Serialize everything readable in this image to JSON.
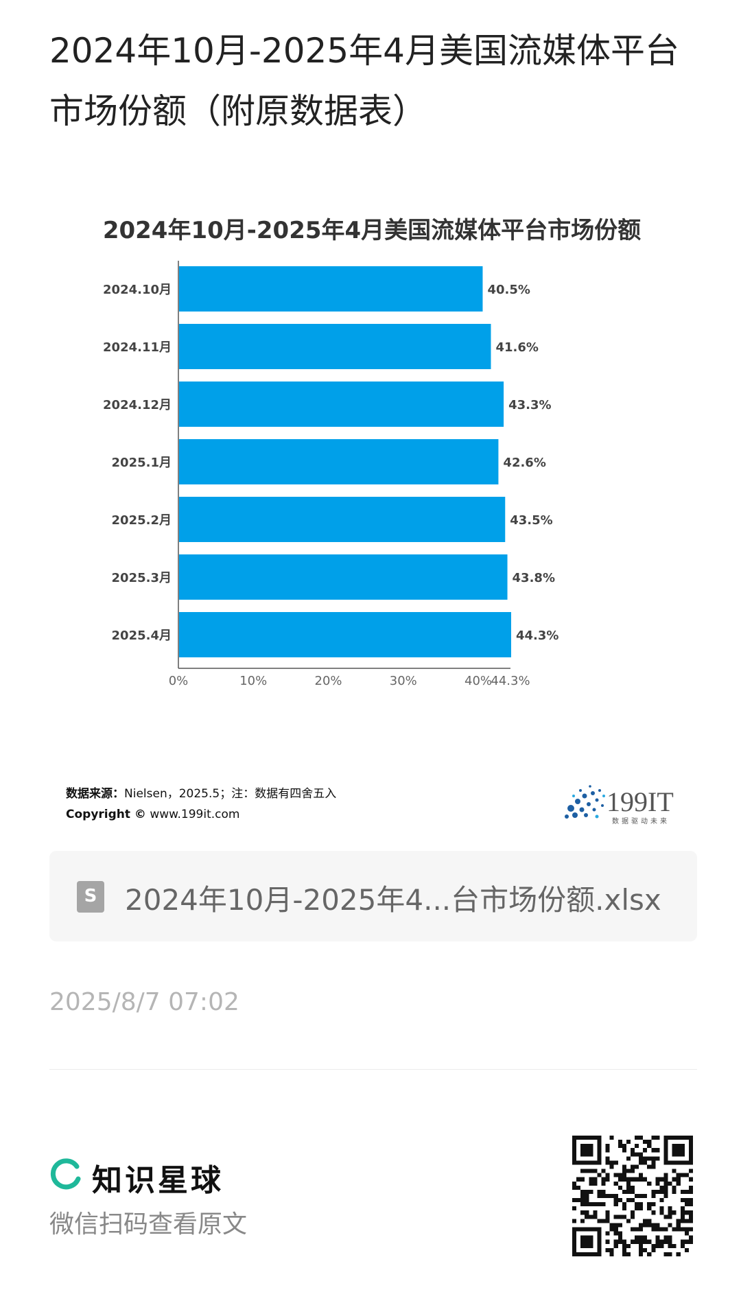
{
  "page": {
    "title": "2024年10月-2025年4月美国流媒体平台市场份额（附原数据表）"
  },
  "chart_data": {
    "type": "bar",
    "orientation": "horizontal",
    "title": "2024年10月-2025年4月美国流媒体平台市场份额",
    "categories": [
      "2024.10月",
      "2024.11月",
      "2024.12月",
      "2025.1月",
      "2025.2月",
      "2025.3月",
      "2025.4月"
    ],
    "values": [
      40.5,
      41.6,
      43.3,
      42.6,
      43.5,
      43.8,
      44.3
    ],
    "data_labels": [
      "40.5%",
      "41.6%",
      "43.3%",
      "42.6%",
      "43.5%",
      "43.8%",
      "44.3%"
    ],
    "x_ticks": [
      0,
      10,
      20,
      30,
      40,
      44.3
    ],
    "x_tick_labels": [
      "0%",
      "10%",
      "20%",
      "30%",
      "40%",
      "44.3%"
    ],
    "xlim": [
      0,
      44.3
    ],
    "bar_color": "#00a0e9",
    "grid": false,
    "xlabel": "",
    "ylabel": ""
  },
  "source": {
    "label": "数据来源：",
    "text": "Nielsen，2025.5；注：数据有四舍五入",
    "copyright_label": "Copyright ©",
    "copyright_text": "www.199it.com"
  },
  "brand": {
    "name": "199IT",
    "slogan": "数据驱动未来"
  },
  "attachment": {
    "icon": "spreadsheet-file-icon",
    "icon_letter": "S",
    "file_name": "2024年10月-2025年4...台市场份额.xlsx"
  },
  "timestamp": "2025/8/7 07:02",
  "footer": {
    "logo_icon": "zsxq-logo-icon",
    "app_name": "知识星球",
    "scan_text": "微信扫码查看原文",
    "qr_icon": "qr-code-icon",
    "accent_color": "#1fb89a"
  }
}
